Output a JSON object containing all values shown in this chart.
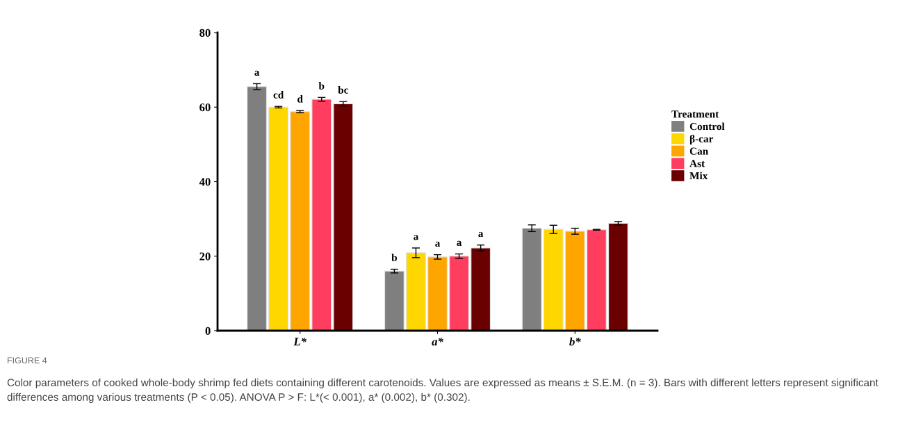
{
  "chart_data": {
    "type": "bar",
    "categories": [
      "L*",
      "a*",
      "b*"
    ],
    "ylim": [
      0,
      80
    ],
    "yticks": [
      0,
      20,
      40,
      60,
      80
    ],
    "grid": false,
    "legend": "right",
    "legend_title": "Treatment",
    "series": [
      {
        "name": "Control",
        "color": "#7f7f7f",
        "values": [
          65.5,
          16.0,
          27.5
        ],
        "errors": [
          0.8,
          0.5,
          0.9
        ],
        "value_labels": [
          "a",
          "b",
          null
        ]
      },
      {
        "name": "β-car",
        "color": "#ffd700",
        "values": [
          60.0,
          20.9,
          27.2
        ],
        "errors": [
          0.2,
          1.3,
          1.1
        ],
        "value_labels": [
          "cd",
          "a",
          null
        ]
      },
      {
        "name": "Can",
        "color": "#ffa500",
        "values": [
          58.8,
          19.8,
          26.7
        ],
        "errors": [
          0.3,
          0.6,
          0.8
        ],
        "value_labels": [
          "d",
          "a",
          null
        ]
      },
      {
        "name": "Ast",
        "color": "#ff3e5f",
        "values": [
          62.1,
          20.0,
          27.1
        ],
        "errors": [
          0.5,
          0.6,
          0.1
        ],
        "value_labels": [
          "b",
          "a",
          null
        ]
      },
      {
        "name": "Mix",
        "color": "#6b0000",
        "values": [
          60.9,
          22.2,
          28.8
        ],
        "errors": [
          0.6,
          0.8,
          0.5
        ],
        "value_labels": [
          "bc",
          "a",
          null
        ]
      }
    ],
    "annotations": [
      "FIGURE 4",
      "Color parameters of cooked whole-body shrimp fed diets containing different carotenoids. Values are expressed as means ± S.E.M. (n = 3). Bars with different letters represent significant differences among various treatments (P < 0.05). ANOVA P > F: L*(< 0.001), a* (0.002), b* (0.302)."
    ]
  }
}
